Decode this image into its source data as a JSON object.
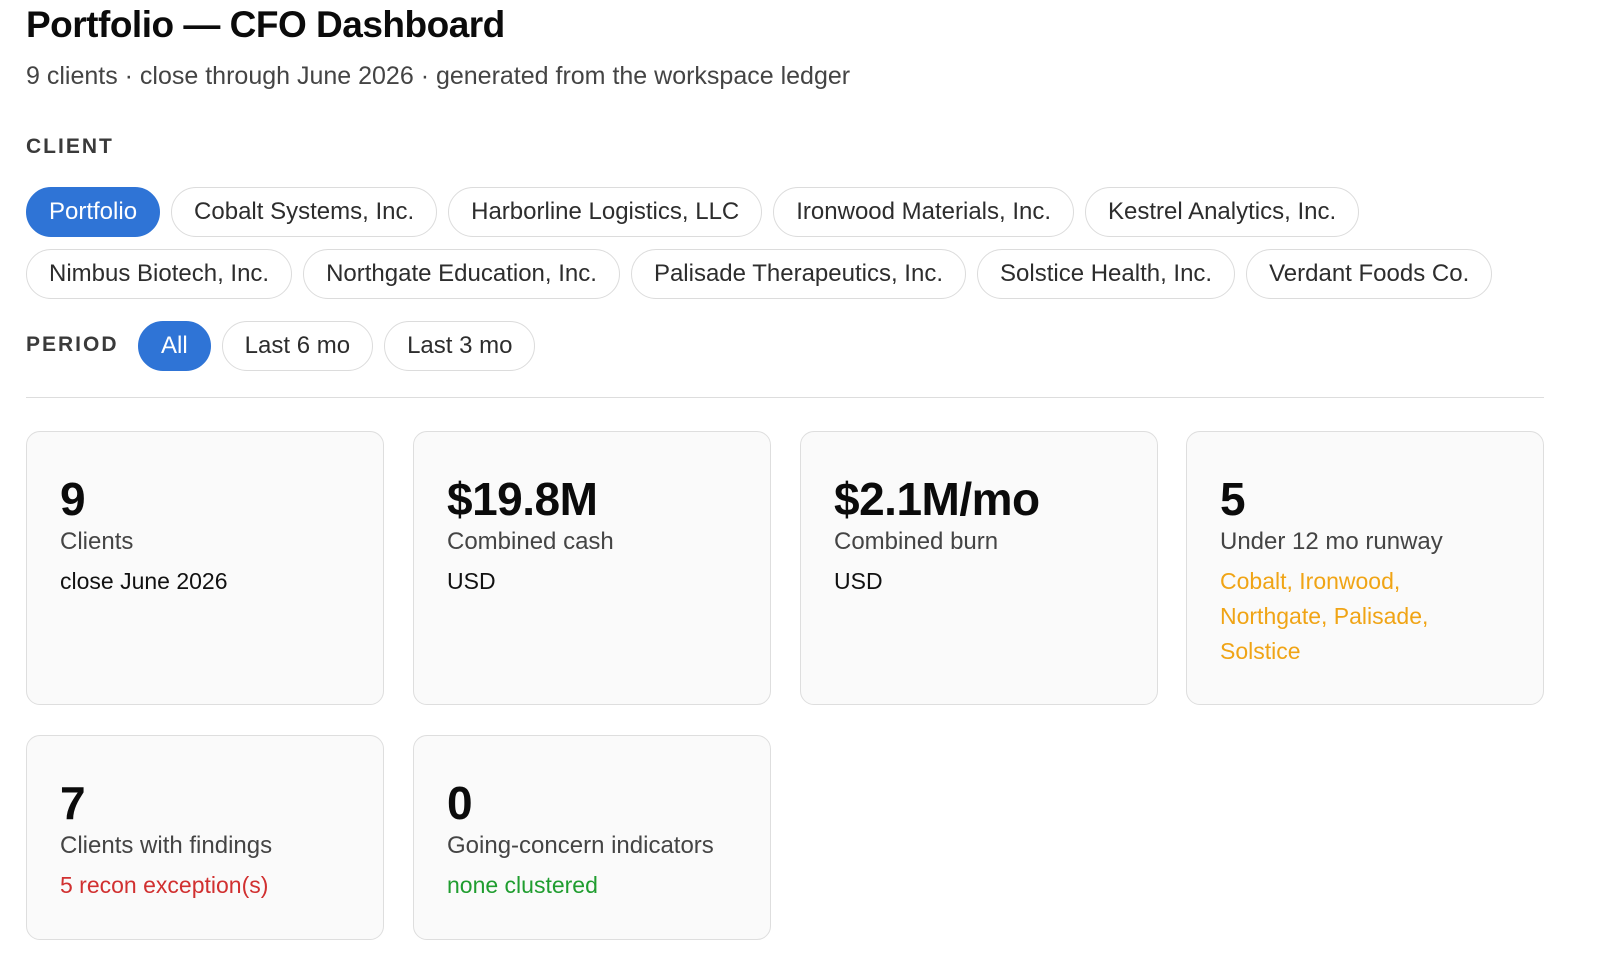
{
  "header": {
    "title": "Portfolio — CFO Dashboard",
    "subtitle": "9 clients · close through June 2026 · generated from the workspace ledger"
  },
  "filters": {
    "client_label": "CLIENT",
    "clients": [
      {
        "label": "Portfolio",
        "active": true
      },
      {
        "label": "Cobalt Systems, Inc.",
        "active": false
      },
      {
        "label": "Harborline Logistics, LLC",
        "active": false
      },
      {
        "label": "Ironwood Materials, Inc.",
        "active": false
      },
      {
        "label": "Kestrel Analytics, Inc.",
        "active": false
      },
      {
        "label": "Nimbus Biotech, Inc.",
        "active": false
      },
      {
        "label": "Northgate Education, Inc.",
        "active": false
      },
      {
        "label": "Palisade Therapeutics, Inc.",
        "active": false
      },
      {
        "label": "Solstice Health, Inc.",
        "active": false
      },
      {
        "label": "Verdant Foods Co.",
        "active": false
      }
    ],
    "period_label": "PERIOD",
    "periods": [
      {
        "label": "All",
        "active": true
      },
      {
        "label": "Last 6 mo",
        "active": false
      },
      {
        "label": "Last 3 mo",
        "active": false
      }
    ]
  },
  "cards": [
    {
      "value": "9",
      "label": "Clients",
      "note": "close June 2026",
      "tone": "neutral"
    },
    {
      "value": "$19.8M",
      "label": "Combined cash",
      "note": "USD",
      "tone": "neutral"
    },
    {
      "value": "$2.1M/mo",
      "label": "Combined burn",
      "note": "USD",
      "tone": "neutral"
    },
    {
      "value": "5",
      "label": "Under 12 mo runway",
      "note": "Cobalt, Ironwood, Northgate, Palisade, Solstice",
      "tone": "warn"
    },
    {
      "value": "7",
      "label": "Clients with findings",
      "note": "5 recon exception(s)",
      "tone": "bad"
    },
    {
      "value": "0",
      "label": "Going-concern indicators",
      "note": "none clustered",
      "tone": "good"
    }
  ],
  "colors": {
    "accent": "#2f74d6",
    "warn": "#f0a415",
    "bad": "#d13030",
    "good": "#1f9d2f"
  }
}
